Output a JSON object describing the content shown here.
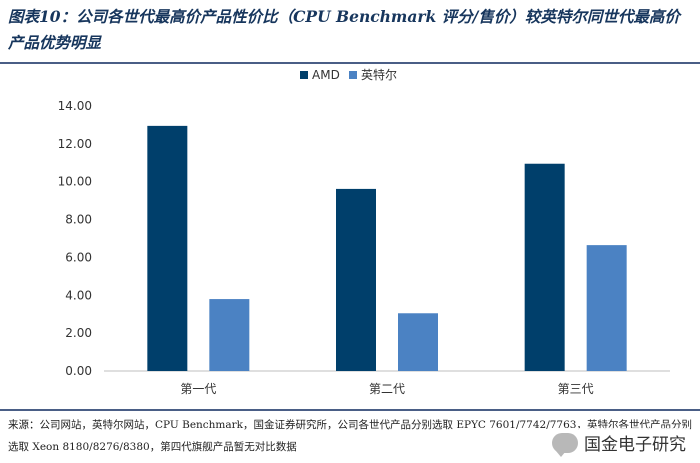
{
  "header": {
    "title": "图表10：公司各世代最高价产品性价比（CPU Benchmark 评分/售价）较英特尔同世代最高价产品优势明显"
  },
  "footer": {
    "source": "来源：公司网站，英特尔网站，CPU Benchmark，国金证券研究所，公司各世代产品分别选取 EPYC 7601/7742/7763，英特尔各世代产品分别选取 Xeon 8180/8276/8380，第四代旗舰产品暂无对比数据",
    "watermark": "国金电子研究"
  },
  "chart_data": {
    "type": "bar",
    "title": "",
    "xlabel": "",
    "ylabel": "",
    "categories": [
      "第一代",
      "第二代",
      "第三代"
    ],
    "series": [
      {
        "name": "AMD",
        "color": "#003f6b",
        "values": [
          12.95,
          9.62,
          10.95
        ]
      },
      {
        "name": "英特尔",
        "color": "#4b82c3",
        "values": [
          3.8,
          3.05,
          6.65
        ]
      }
    ],
    "ylim": [
      0,
      14
    ],
    "yticks": [
      "0.00",
      "2.00",
      "4.00",
      "6.00",
      "8.00",
      "10.00",
      "12.00",
      "14.00"
    ],
    "grid": false,
    "legend": "top-center"
  }
}
